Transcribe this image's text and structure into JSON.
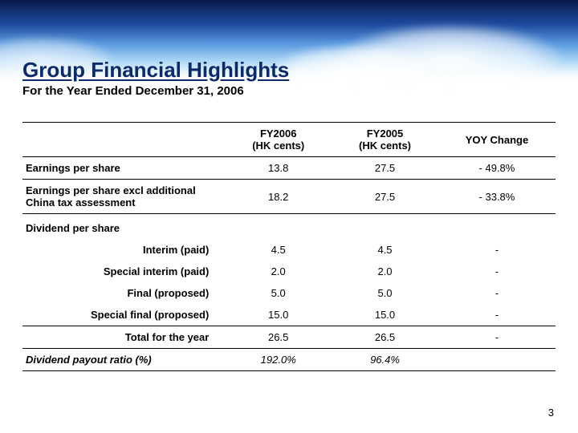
{
  "colors": {
    "title": "#0b2a6b",
    "text": "#000000",
    "bg": "#ffffff",
    "sky_top": "#0a1a4a",
    "sky_mid": "#5a9ae0",
    "sky_bot": "#e8f4fb"
  },
  "title": "Group Financial Highlights",
  "subtitle": "For the Year Ended December 31, 2006",
  "table": {
    "headers": {
      "blank": "",
      "fy2006_l1": "FY2006",
      "fy2006_l2": "(HK cents)",
      "fy2005_l1": "FY2005",
      "fy2005_l2": "(HK cents)",
      "yoy": "YOY Change"
    },
    "rows": {
      "eps": {
        "label": "Earnings per share",
        "fy2006": "13.8",
        "fy2005": "27.5",
        "yoy": "- 49.8%"
      },
      "eps_excl": {
        "label": "Earnings per share excl additional China tax assessment",
        "fy2006": "18.2",
        "fy2005": "27.5",
        "yoy": "- 33.8%"
      },
      "dps_head": {
        "label": "Dividend per share"
      },
      "interim": {
        "label": "Interim (paid)",
        "fy2006": "4.5",
        "fy2005": "4.5",
        "yoy": "-"
      },
      "spec_int": {
        "label": "Special interim (paid)",
        "fy2006": "2.0",
        "fy2005": "2.0",
        "yoy": "-"
      },
      "final": {
        "label": "Final (proposed)",
        "fy2006": "5.0",
        "fy2005": "5.0",
        "yoy": "-"
      },
      "spec_final": {
        "label": "Special final (proposed)",
        "fy2006": "15.0",
        "fy2005": "15.0",
        "yoy": "-"
      },
      "total": {
        "label": "Total for the year",
        "fy2006": "26.5",
        "fy2005": "26.5",
        "yoy": "-"
      },
      "payout": {
        "label": "Dividend payout ratio (%)",
        "fy2006": "192.0%",
        "fy2005": "96.4%",
        "yoy": ""
      }
    }
  },
  "page_number": "3"
}
